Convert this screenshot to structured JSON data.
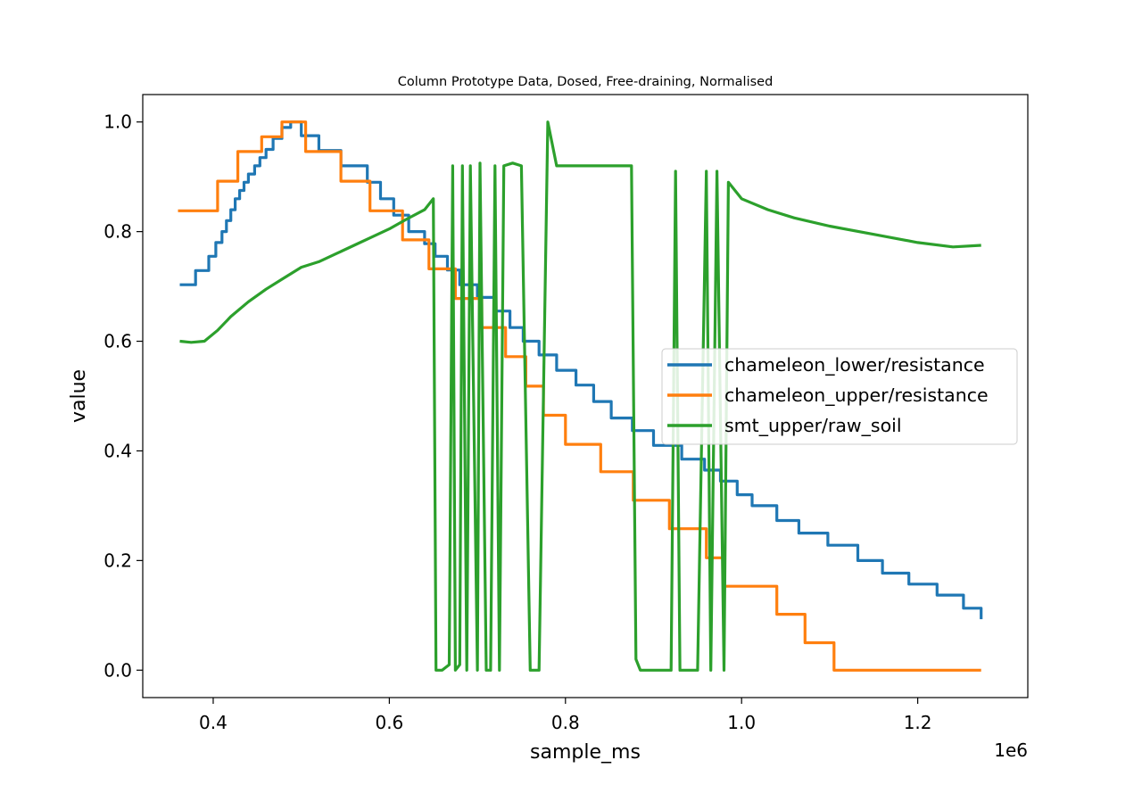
{
  "chart_data": {
    "type": "line",
    "title": "Column Prototype Data, Dosed, Free-draining, Normalised",
    "xlabel": "sample_ms",
    "ylabel": "value",
    "x_offset_label": "1e6",
    "xlim": [
      320000,
      1325000
    ],
    "ylim": [
      -0.05,
      1.05
    ],
    "xticks": [
      400000,
      600000,
      800000,
      1000000,
      1200000
    ],
    "xtick_labels": [
      "0.4",
      "0.6",
      "0.8",
      "1.0",
      "1.2"
    ],
    "yticks": [
      0.0,
      0.2,
      0.4,
      0.6,
      0.8,
      1.0
    ],
    "ytick_labels": [
      "0.0",
      "0.2",
      "0.4",
      "0.6",
      "0.8",
      "1.0"
    ],
    "grid": false,
    "legend_position": "center-right",
    "series": [
      {
        "name": "chameleon_lower/resistance",
        "color": "#1f77b4",
        "step": true,
        "x": [
          362000,
          380000,
          395000,
          403000,
          410000,
          415000,
          420000,
          425000,
          430000,
          435000,
          440000,
          447000,
          453000,
          460000,
          468000,
          478000,
          488000,
          500000,
          520000,
          545000,
          575000,
          590000,
          605000,
          622000,
          640000,
          652000,
          666000,
          680000,
          700000,
          720000,
          737000,
          752000,
          770000,
          790000,
          812000,
          832000,
          852000,
          876000,
          900000,
          932000,
          958000,
          976000,
          995000,
          1012000,
          1040000,
          1065000,
          1098000,
          1132000,
          1160000,
          1190000,
          1222000,
          1252000,
          1272000
        ],
        "values": [
          0.703,
          0.729,
          0.755,
          0.78,
          0.8,
          0.82,
          0.84,
          0.86,
          0.875,
          0.89,
          0.905,
          0.92,
          0.935,
          0.95,
          0.97,
          0.99,
          1.0,
          0.975,
          0.948,
          0.92,
          0.89,
          0.86,
          0.83,
          0.8,
          0.778,
          0.755,
          0.73,
          0.703,
          0.68,
          0.655,
          0.625,
          0.6,
          0.575,
          0.547,
          0.52,
          0.49,
          0.46,
          0.437,
          0.41,
          0.385,
          0.365,
          0.345,
          0.32,
          0.3,
          0.273,
          0.25,
          0.228,
          0.2,
          0.177,
          0.157,
          0.137,
          0.113,
          0.093
        ]
      },
      {
        "name": "chameleon_upper/resistance",
        "color": "#ff7f0e",
        "step": true,
        "x": [
          360000,
          378000,
          405000,
          428000,
          455000,
          478000,
          505000,
          545000,
          578000,
          615000,
          645000,
          675000,
          705000,
          732000,
          755000,
          775000,
          800000,
          840000,
          877000,
          918000,
          960000,
          980000,
          1040000,
          1072000,
          1105000,
          1168000,
          1208000,
          1260000,
          1272000
        ],
        "values": [
          0.838,
          0.838,
          0.892,
          0.946,
          0.973,
          1.0,
          0.946,
          0.892,
          0.838,
          0.785,
          0.732,
          0.678,
          0.625,
          0.572,
          0.518,
          0.465,
          0.412,
          0.362,
          0.31,
          0.258,
          0.205,
          0.153,
          0.102,
          0.05,
          0.0,
          0.0,
          0.0,
          0.0,
          0.0
        ]
      },
      {
        "name": "smt_upper/raw_soil",
        "color": "#2ca02c",
        "step": false,
        "x": [
          362000,
          375000,
          390000,
          405000,
          420000,
          440000,
          460000,
          480000,
          500000,
          520000,
          540000,
          560000,
          580000,
          600000,
          620000,
          640000,
          650000,
          653000,
          660000,
          668000,
          672000,
          675000,
          680000,
          683000,
          688000,
          692000,
          700000,
          703000,
          710000,
          715000,
          720000,
          725000,
          730000,
          740000,
          750000,
          760000,
          770000,
          780000,
          790000,
          800000,
          820000,
          840000,
          860000,
          875000,
          880000,
          885000,
          900000,
          920000,
          925000,
          930000,
          940000,
          950000,
          960000,
          965000,
          972000,
          980000,
          985000,
          1000000,
          1030000,
          1060000,
          1100000,
          1150000,
          1200000,
          1240000,
          1272000
        ],
        "values": [
          0.6,
          0.598,
          0.6,
          0.62,
          0.645,
          0.672,
          0.695,
          0.715,
          0.735,
          0.745,
          0.76,
          0.775,
          0.79,
          0.805,
          0.823,
          0.84,
          0.86,
          0.0,
          0.0,
          0.01,
          0.92,
          0.0,
          0.01,
          0.92,
          0.0,
          0.92,
          0.0,
          0.925,
          0.0,
          0.0,
          0.92,
          0.0,
          0.92,
          0.925,
          0.92,
          0.0,
          0.0,
          1.0,
          0.92,
          0.92,
          0.92,
          0.92,
          0.92,
          0.92,
          0.02,
          0.0,
          0.0,
          0.0,
          0.91,
          0.0,
          0.0,
          0.0,
          0.91,
          0.0,
          0.91,
          0.0,
          0.89,
          0.86,
          0.84,
          0.825,
          0.81,
          0.795,
          0.78,
          0.772,
          0.775
        ]
      }
    ]
  }
}
